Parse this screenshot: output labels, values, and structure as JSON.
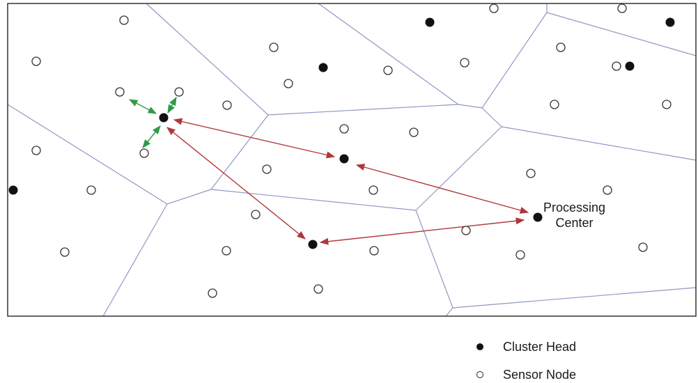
{
  "colors": {
    "region_border": "#8f97c4",
    "frame": "#333333",
    "cluster_head": "#111111",
    "sensor_node_stroke": "#333333",
    "long_link": "#b0383a",
    "short_link": "#2f9a48"
  },
  "processing_center": {
    "line1": "Processing",
    "line2": "Center"
  },
  "legend": {
    "cluster_head_label": "Cluster Head",
    "sensor_node_label": "Sensor Node"
  }
}
